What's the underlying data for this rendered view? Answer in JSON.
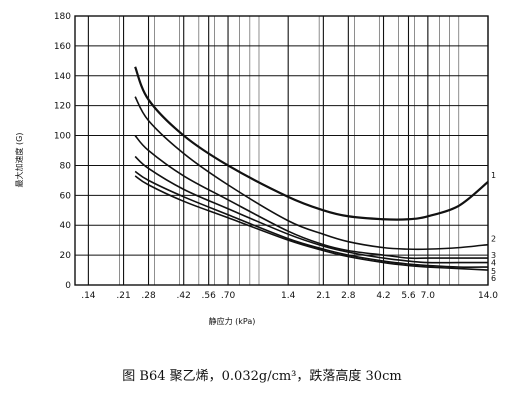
{
  "chart_data": {
    "type": "line",
    "x_scale": "log",
    "xlabel": "静应力 (kPa)",
    "ylabel": "最大加速度 (G)",
    "xlim": [
      0.12,
      14.0
    ],
    "ylim": [
      0,
      180
    ],
    "x_ticks": [
      0.14,
      0.21,
      0.28,
      0.42,
      0.56,
      0.7,
      1.4,
      2.1,
      2.8,
      4.2,
      5.6,
      7.0,
      14.0
    ],
    "x_tick_labels": [
      ".14",
      ".21",
      ".28",
      ".42",
      ".56",
      ".70",
      "1.4",
      "2.1",
      "2.8",
      "4.2",
      "5.6",
      "7.0",
      "14.0"
    ],
    "y_ticks": [
      0,
      20,
      40,
      60,
      80,
      100,
      120,
      140,
      160,
      180
    ],
    "y_tick_labels": [
      "0",
      "20",
      "40",
      "60",
      "80",
      "100",
      "120",
      "140",
      "160",
      "180"
    ],
    "grid": true,
    "caption": "图 B64   聚乙烯，0.032g/cm³，跌落高度 30cm",
    "series": [
      {
        "name": "1",
        "x": [
          0.24,
          0.28,
          0.42,
          0.7,
          1.4,
          2.1,
          2.8,
          4.2,
          5.6,
          7.0,
          10.0,
          14.0
        ],
        "values": [
          146,
          124,
          100,
          80,
          59,
          50,
          46,
          44,
          44,
          46,
          53,
          69
        ]
      },
      {
        "name": "2",
        "x": [
          0.24,
          0.28,
          0.42,
          0.7,
          1.4,
          2.1,
          2.8,
          4.2,
          5.6,
          7.0,
          10.0,
          14.0
        ],
        "values": [
          126,
          110,
          88,
          67,
          43,
          34,
          29,
          25,
          24,
          24,
          25,
          27
        ]
      },
      {
        "name": "3",
        "x": [
          0.24,
          0.28,
          0.42,
          0.7,
          1.4,
          2.1,
          2.8,
          4.2,
          5.6,
          7.0,
          10.0,
          14.0
        ],
        "values": [
          100,
          90,
          73,
          57,
          36,
          27,
          23,
          20,
          18,
          18,
          18,
          18
        ]
      },
      {
        "name": "4",
        "x": [
          0.24,
          0.28,
          0.42,
          0.7,
          1.4,
          2.1,
          2.8,
          4.2,
          5.6,
          7.0,
          10.0,
          14.0
        ],
        "values": [
          86,
          78,
          64,
          51,
          34,
          26,
          22,
          18,
          16,
          15,
          15,
          15
        ]
      },
      {
        "name": "5",
        "x": [
          0.24,
          0.28,
          0.42,
          0.7,
          1.4,
          2.1,
          2.8,
          4.2,
          5.6,
          7.0,
          10.0,
          14.0
        ],
        "values": [
          76,
          70,
          59,
          47,
          31,
          24,
          20,
          16,
          14,
          13,
          12,
          12
        ]
      },
      {
        "name": "6",
        "x": [
          0.24,
          0.28,
          0.42,
          0.7,
          1.4,
          2.1,
          2.8,
          4.2,
          5.6,
          7.0,
          10.0,
          14.0
        ],
        "values": [
          73,
          67,
          56,
          45,
          30,
          23,
          19,
          15,
          13,
          12,
          11,
          10
        ]
      }
    ]
  }
}
